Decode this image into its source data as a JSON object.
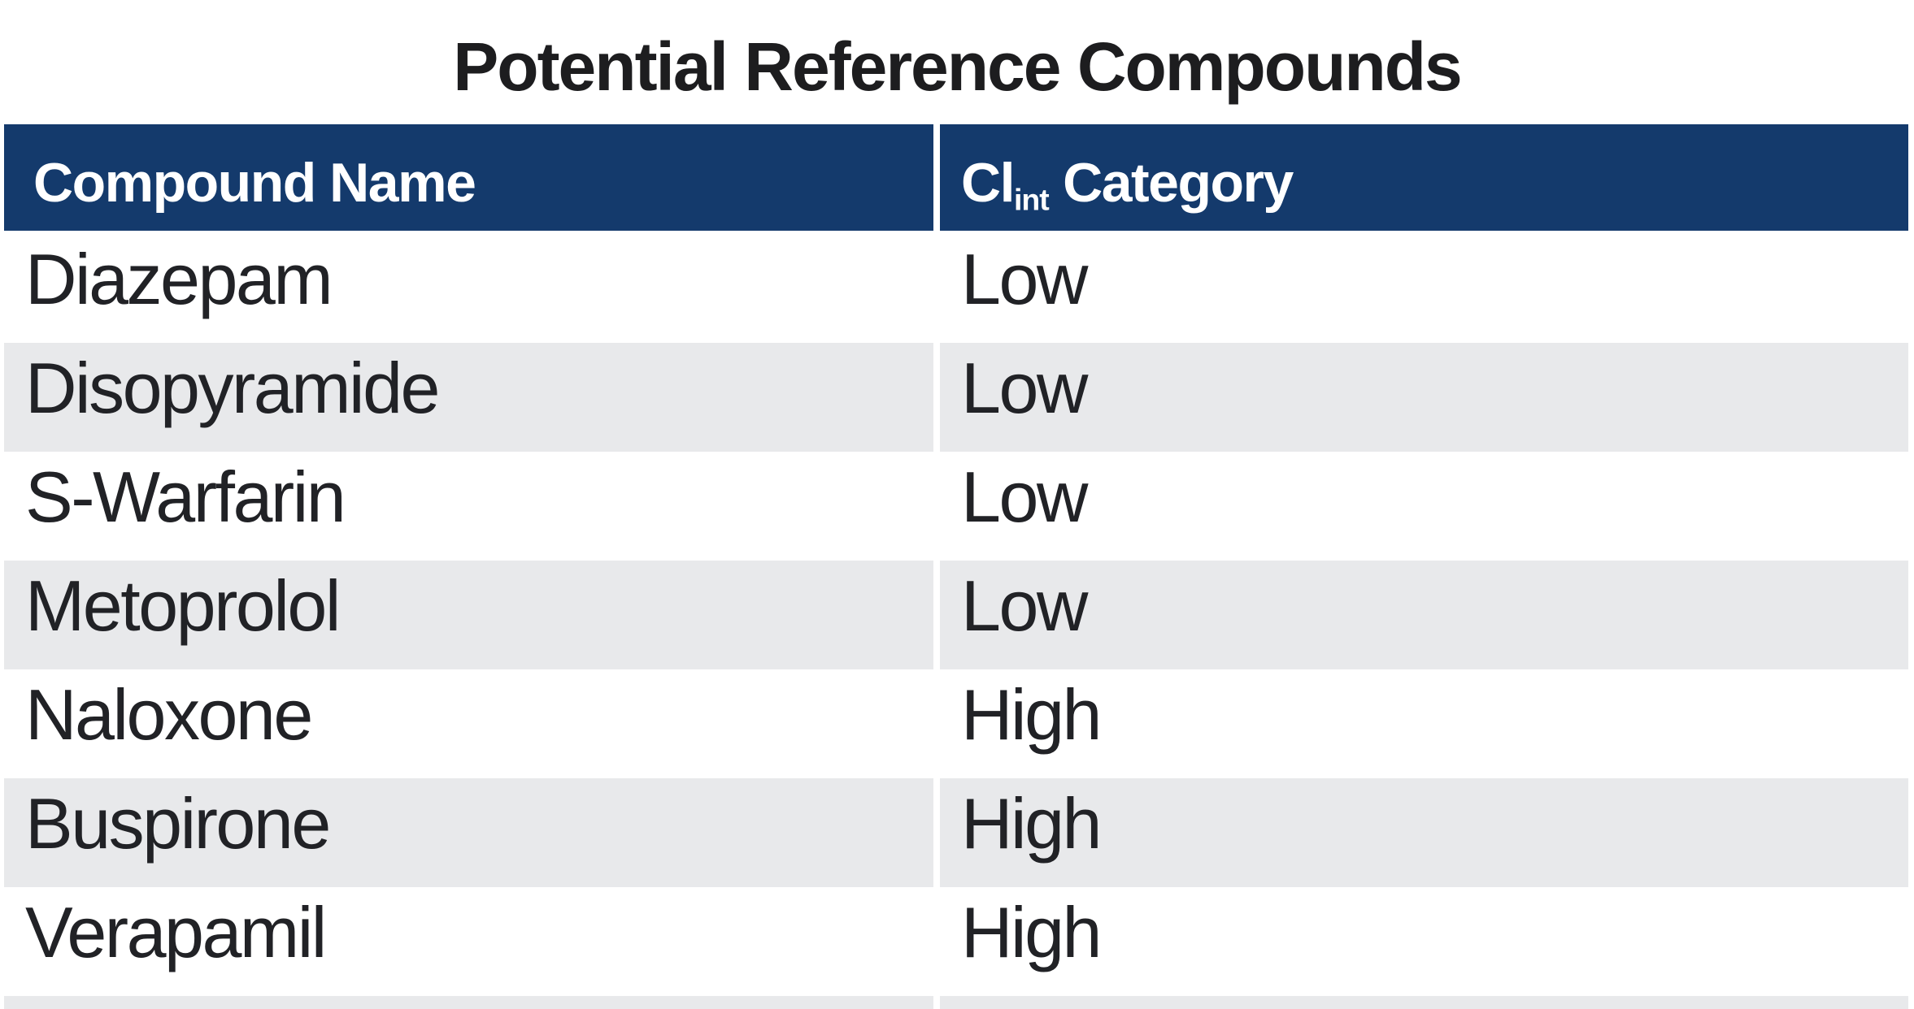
{
  "title": "Potential Reference Compounds",
  "colors": {
    "header_background": "#143a6c",
    "header_text": "#ffffff",
    "banded_row_background": "#e8e9eb",
    "plain_row_background": "#ffffff",
    "body_text": "#212226",
    "title_text": "#1d1d1f"
  },
  "table": {
    "headers": {
      "compound_name": "Compound Name",
      "clint": {
        "base": "Cl",
        "subscript": "int",
        "rest": " Category"
      }
    },
    "rows": [
      {
        "compound": "Diazepam",
        "category": "Low"
      },
      {
        "compound": "Disopyramide",
        "category": "Low"
      },
      {
        "compound": "S-Warfarin",
        "category": "Low"
      },
      {
        "compound": "Metoprolol",
        "category": "Low"
      },
      {
        "compound": "Naloxone",
        "category": "High"
      },
      {
        "compound": "Buspirone",
        "category": "High"
      },
      {
        "compound": "Verapamil",
        "category": "High"
      }
    ]
  }
}
